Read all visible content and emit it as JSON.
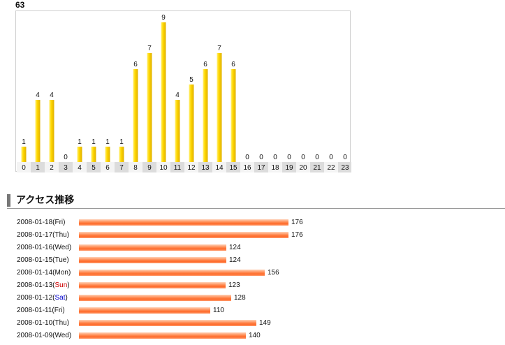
{
  "hourly": {
    "total": "63",
    "chart_data": {
      "type": "bar",
      "categories": [
        "0",
        "1",
        "2",
        "3",
        "4",
        "5",
        "6",
        "7",
        "8",
        "9",
        "10",
        "11",
        "12",
        "13",
        "14",
        "15",
        "16",
        "17",
        "18",
        "19",
        "20",
        "21",
        "22",
        "23"
      ],
      "values": [
        1,
        4,
        4,
        0,
        1,
        1,
        1,
        1,
        6,
        7,
        9,
        4,
        5,
        6,
        7,
        6,
        0,
        0,
        0,
        0,
        0,
        0,
        0,
        0
      ],
      "ylim": [
        0,
        9
      ],
      "bar_color": "#ffd800"
    }
  },
  "daily": {
    "section_title": "アクセス推移",
    "chart_data": {
      "type": "bar",
      "orientation": "horizontal",
      "categories": [
        "2008-01-18(Fri)",
        "2008-01-17(Thu)",
        "2008-01-16(Wed)",
        "2008-01-15(Tue)",
        "2008-01-14(Mon)",
        "2008-01-13(Sun)",
        "2008-01-12(Sat)",
        "2008-01-11(Fri)",
        "2008-01-10(Thu)",
        "2008-01-09(Wed)"
      ],
      "values": [
        176,
        176,
        124,
        124,
        156,
        123,
        128,
        110,
        149,
        140
      ],
      "bar_color": "#ff7a3a",
      "sunday_color": "#cc0000",
      "saturday_color": "#0000cc"
    }
  }
}
